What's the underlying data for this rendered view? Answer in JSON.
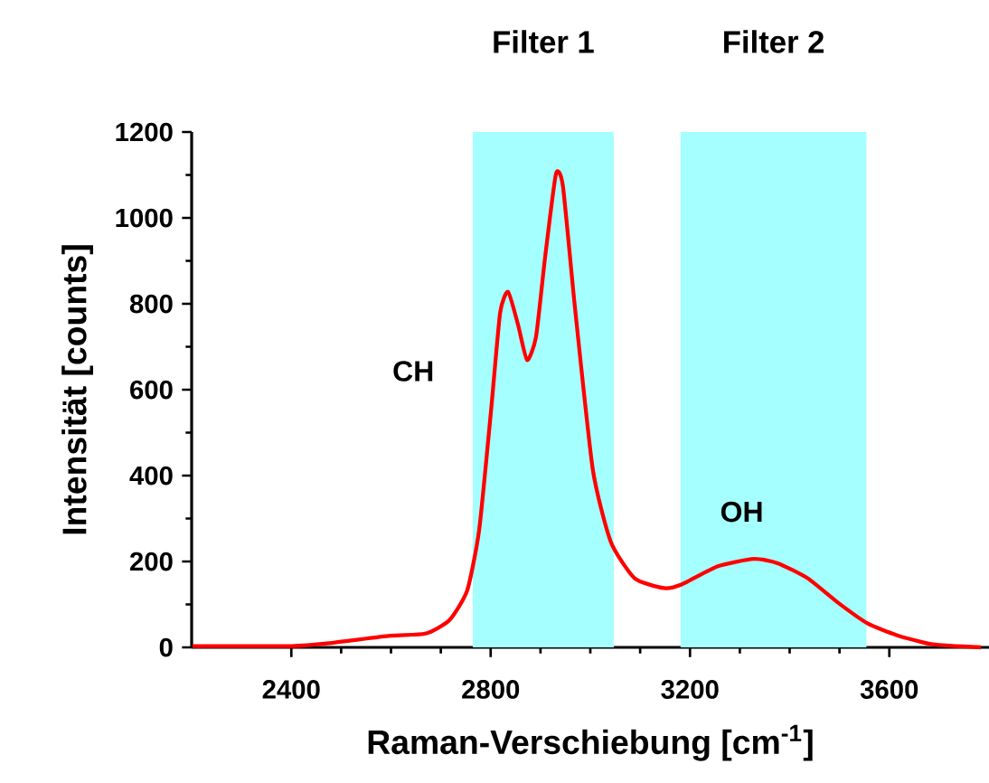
{
  "chart_data": {
    "type": "line",
    "xlabel": "Raman-Verschiebung [cm$^{-1}$]",
    "ylabel": "Intensität  [counts]",
    "xlim": [
      2200,
      3800
    ],
    "xticks": [
      2400,
      2800,
      3200,
      3600
    ],
    "ylim": [
      0,
      1200
    ],
    "yticks": [
      0,
      200,
      400,
      600,
      800,
      1000,
      1200
    ],
    "x": [
      2202,
      2400,
      2478,
      2598,
      2669,
      2717,
      2753,
      2777,
      2801,
      2819,
      2835,
      2855,
      2873,
      2891,
      2909,
      2931,
      2945,
      2969,
      3005,
      3041,
      3089,
      3148,
      3184,
      3256,
      3328,
      3376,
      3436,
      3496,
      3556,
      3616,
      3687,
      3784
    ],
    "series": [
      {
        "color": "#ff0000",
        "line_style": "solid",
        "values": [
          3,
          3,
          10,
          27,
          32,
          63,
          133,
          274,
          554,
          779,
          828,
          751,
          669,
          723,
          906,
          1102,
          1074,
          793,
          414,
          246,
          161,
          138,
          147,
          189,
          206,
          196,
          161,
          105,
          56,
          28,
          7,
          0
        ]
      }
    ],
    "bands": [
      {
        "axis": "x",
        "from": 2764,
        "to": 3047,
        "label": "Filter 1",
        "color": "#a6ffff"
      },
      {
        "axis": "x",
        "from": 3181,
        "to": 3554,
        "label": "Filter 2",
        "color": "#a6ffff"
      }
    ],
    "annotations": [
      "CH",
      "OH"
    ]
  }
}
